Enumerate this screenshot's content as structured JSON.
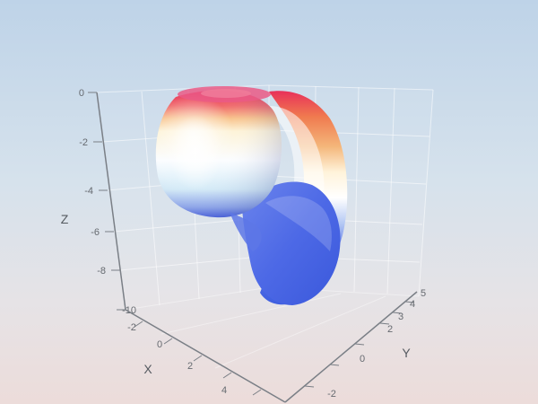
{
  "chart_data": {
    "type": "surface",
    "title": "",
    "x_axis": {
      "label": "X",
      "ticks": [
        "-2",
        "0",
        "2",
        "4"
      ],
      "range": [
        -3,
        5
      ]
    },
    "y_axis": {
      "label": "Y",
      "ticks": [
        "-2",
        "0",
        "2",
        "3",
        "4",
        "5"
      ],
      "range": [
        -2.5,
        5
      ]
    },
    "z_axis": {
      "label": "Z",
      "ticks": [
        "0",
        "-2",
        "-4",
        "-6",
        "-8",
        "-10"
      ],
      "range": [
        -10,
        0
      ]
    },
    "colorscale": [
      "#3f5fe0",
      "#e8f6ff",
      "#fff0c8",
      "#f5a35a",
      "#e8305a"
    ],
    "grid": true,
    "legend": "none"
  }
}
